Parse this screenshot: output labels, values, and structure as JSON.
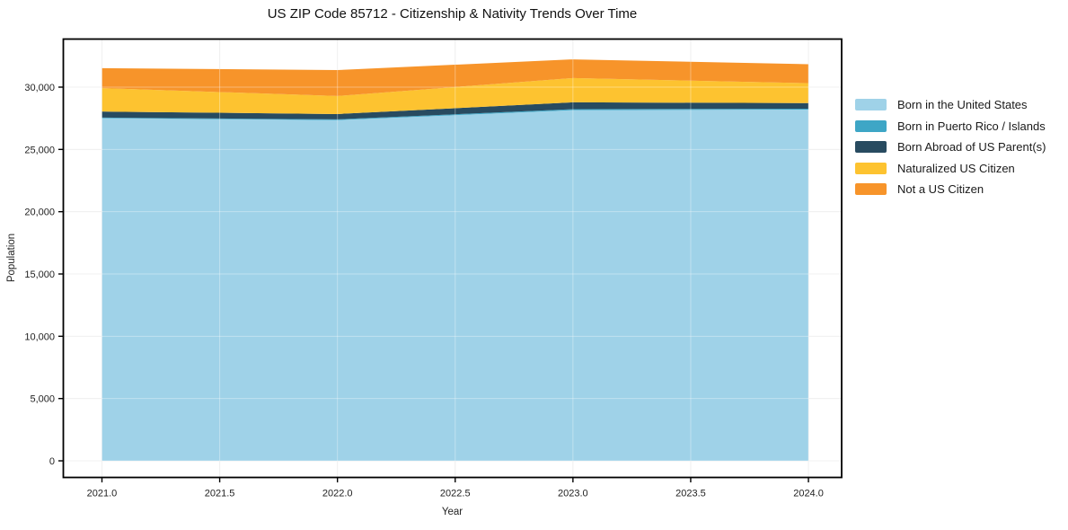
{
  "chart_data": {
    "type": "area",
    "stacked": true,
    "title": "US ZIP Code 85712 - Citizenship & Nativity Trends Over Time",
    "xlabel": "Year",
    "ylabel": "Population",
    "x": [
      2021,
      2022,
      2023,
      2024
    ],
    "series": [
      {
        "name": "Born in the United States",
        "color": "#9fd2e8",
        "values": [
          27500,
          27350,
          28150,
          28200
        ]
      },
      {
        "name": "Born in Puerto Rico / Islands",
        "color": "#3ea6c6",
        "values": [
          60,
          60,
          80,
          70
        ]
      },
      {
        "name": "Born Abroad of US Parent(s)",
        "color": "#284b60",
        "values": [
          480,
          430,
          550,
          450
        ]
      },
      {
        "name": "Naturalized US Citizen",
        "color": "#fdc330",
        "values": [
          1880,
          1450,
          1950,
          1600
        ]
      },
      {
        "name": "Not a US Citizen",
        "color": "#f7942a",
        "values": [
          1600,
          2080,
          1500,
          1520
        ]
      }
    ],
    "xticks": {
      "values": [
        2021.0,
        2021.5,
        2022.0,
        2022.5,
        2023.0,
        2023.5,
        2024.0
      ],
      "labels": [
        "2021.0",
        "2021.5",
        "2022.0",
        "2022.5",
        "2023.0",
        "2023.5",
        "2024.0"
      ]
    },
    "yticks": {
      "values": [
        0,
        5000,
        10000,
        15000,
        20000,
        25000,
        30000
      ],
      "labels": [
        "0",
        "5,000",
        "10,000",
        "15,000",
        "20,000",
        "25,000",
        "30,000"
      ]
    },
    "xlim": [
      2020.836,
      2024.141
    ],
    "ylim": [
      -1334,
      33858
    ],
    "grid": true,
    "legend_position": "right-outside",
    "colors": {
      "spine": "#000000",
      "grid": "#e8e8e8",
      "grid_overlay": "rgba(255,255,255,0.35)",
      "tick_text": "#222222"
    }
  }
}
